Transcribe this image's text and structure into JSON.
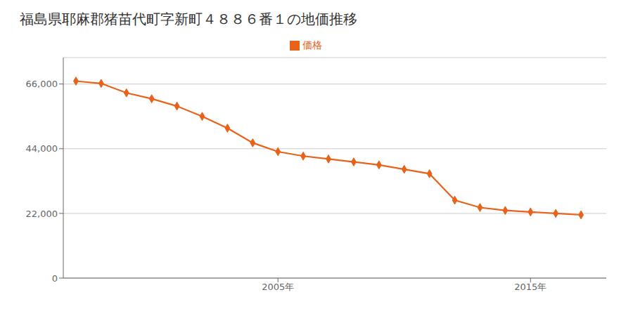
{
  "chart_data": {
    "type": "line",
    "title": "福島県耶麻郡猪苗代町字新町４８８６番１の地価推移",
    "x": [
      1997,
      1998,
      1999,
      2000,
      2001,
      2002,
      2003,
      2004,
      2005,
      2006,
      2007,
      2008,
      2009,
      2010,
      2011,
      2012,
      2013,
      2014,
      2015,
      2016,
      2017
    ],
    "series": [
      {
        "name": "価格",
        "color": "#e8621a",
        "marker": "diamond",
        "values": [
          67000,
          66200,
          63000,
          61000,
          58500,
          55000,
          51000,
          46000,
          43000,
          41500,
          40500,
          39500,
          38500,
          37000,
          35500,
          26500,
          24000,
          23000,
          22500,
          22000,
          21500
        ]
      }
    ],
    "xlim": [
      1996.5,
      2018
    ],
    "xticks": [
      {
        "value": 2005,
        "label": "2005年"
      },
      {
        "value": 2015,
        "label": "2015年"
      }
    ],
    "ylim": [
      0,
      75000
    ],
    "yticks": [
      0,
      {
        "value": 22000,
        "label": "22,000"
      },
      {
        "value": 44000,
        "label": "44,000"
      },
      {
        "value": 66000,
        "label": "66,000"
      }
    ],
    "grid": "y",
    "legend": "top"
  }
}
